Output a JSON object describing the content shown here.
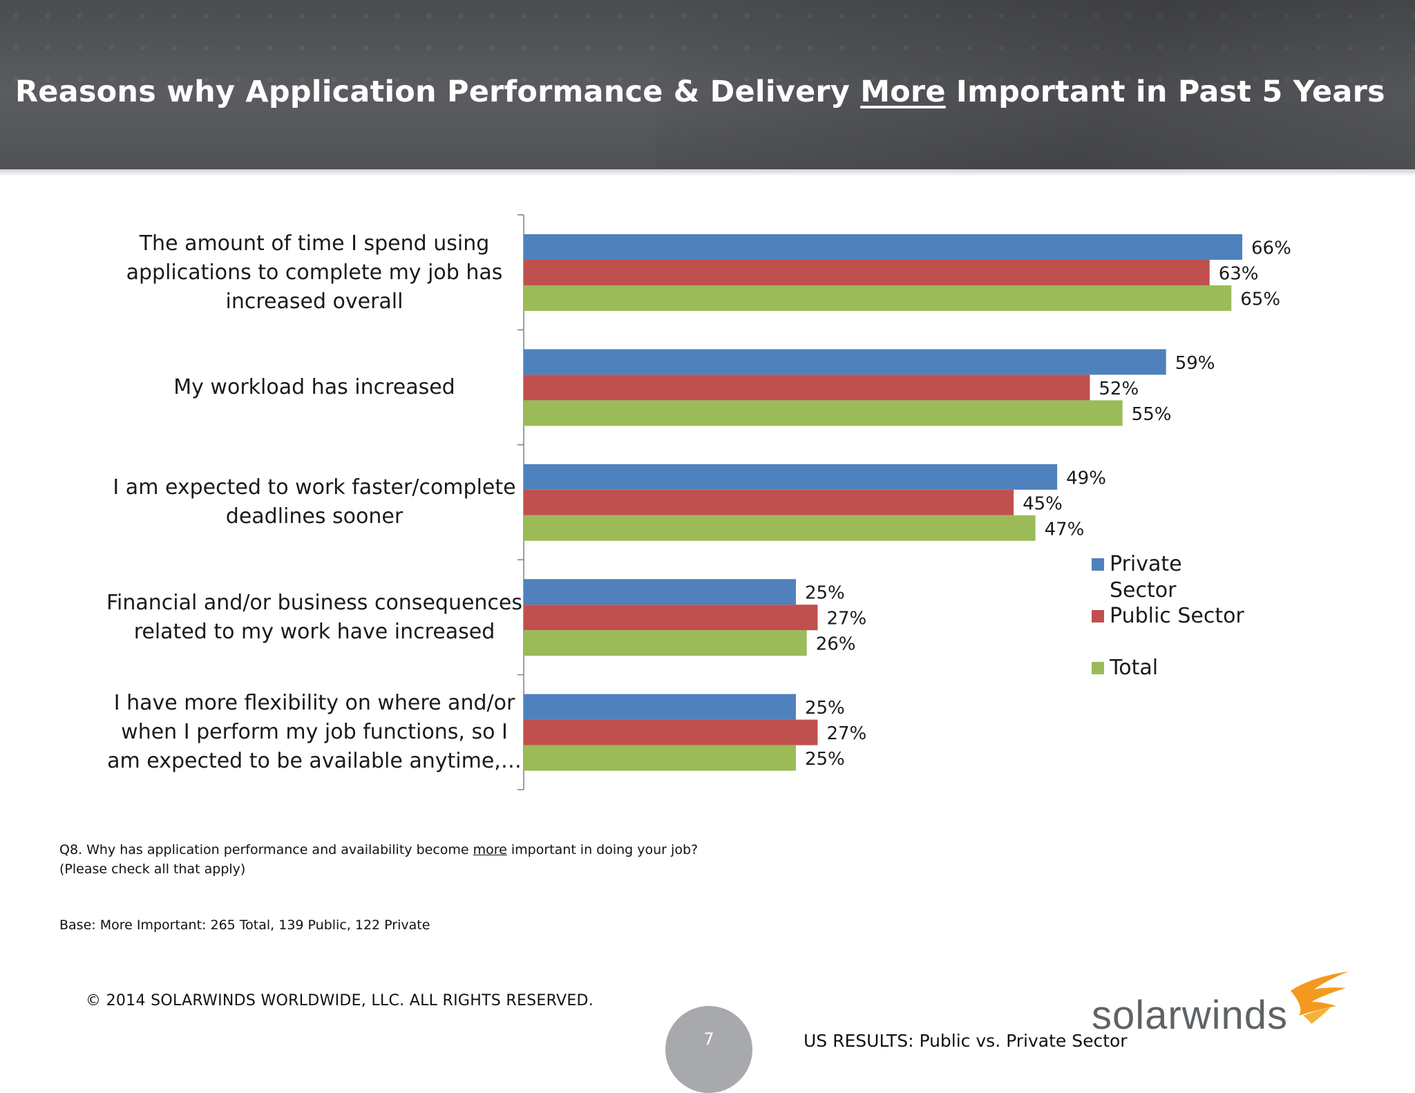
{
  "title": {
    "before": "Reasons why Application Performance & Delivery ",
    "emphasis": "More",
    "after": " Important in Past 5 Years"
  },
  "chart_data": {
    "type": "bar",
    "orientation": "horizontal",
    "categories": [
      "The amount of time I spend using applications to complete my job has increased overall",
      "My workload has increased",
      "I am expected to work faster/complete deadlines sooner",
      "Financial and/or business consequences related to my work have increased",
      "I have more flexibility on where and/or when I perform my job functions, so I am expected to be available anytime,…"
    ],
    "category_lines": [
      [
        "The amount of time I spend using",
        "applications to complete my job has",
        "increased overall"
      ],
      [
        "My workload has increased"
      ],
      [
        "I am expected to work faster/complete",
        "deadlines sooner"
      ],
      [
        "Financial and/or business consequences",
        "related to my work have increased"
      ],
      [
        "I have more flexibility on where and/or",
        "when I perform my job functions, so I",
        "am expected to be available anytime,…"
      ]
    ],
    "series": [
      {
        "name": "Private Sector",
        "color": "#4f81bd",
        "values": [
          66,
          59,
          49,
          25,
          25
        ]
      },
      {
        "name": "Public Sector",
        "color": "#c0504d",
        "values": [
          63,
          52,
          45,
          27,
          27
        ]
      },
      {
        "name": "Total",
        "color": "#9bbb59",
        "values": [
          65,
          55,
          47,
          26,
          25
        ]
      }
    ],
    "value_suffix": "%",
    "xlim": [
      0,
      100
    ],
    "grid": false,
    "legend_position": "right"
  },
  "legend": {
    "private_line1": "Private",
    "private_line2": "Sector",
    "public": "Public Sector",
    "total": "Total"
  },
  "question": {
    "line1_before": "Q8. Why has application performance and availability become ",
    "line1_emphasis": "more",
    "line1_after": " important in doing your job?",
    "line2": "(Please check all that apply)"
  },
  "base": "Base:  More Important:  265 Total, 139 Public, 122 Private",
  "copyright": "© 2014 SOLARWINDS WORLDWIDE, LLC.  ALL RIGHTS RESERVED.",
  "page_number": "7",
  "footer_right": "US RESULTS:  Public vs. Private Sector",
  "logo_text": "solarwinds"
}
